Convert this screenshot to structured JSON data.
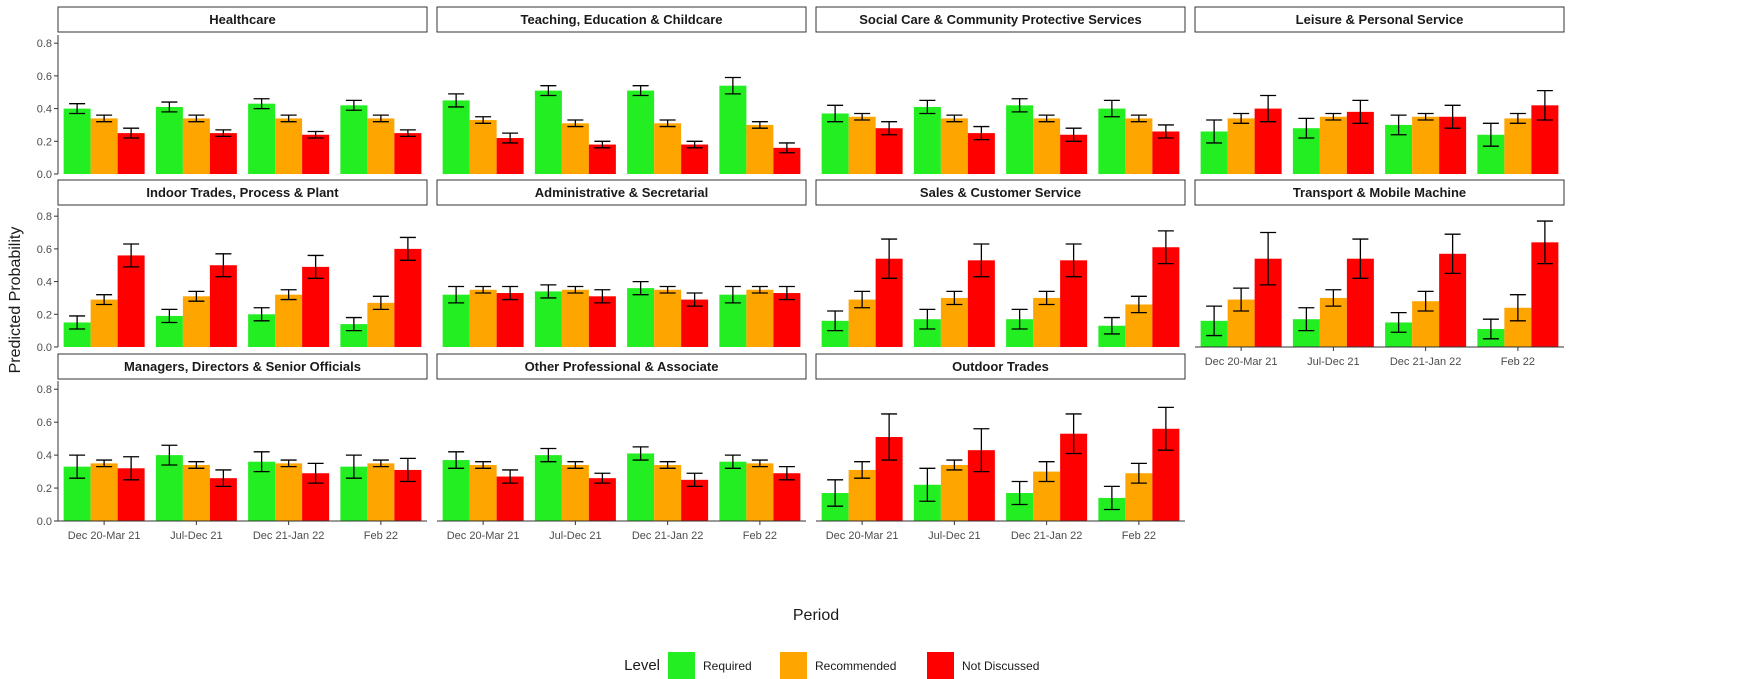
{
  "chart_data": {
    "type": "bar",
    "xlabel": "Period",
    "ylabel": "Predicted Probability",
    "ylim": [
      0,
      0.85
    ],
    "yticks": [
      "0.0",
      "0.2",
      "0.4",
      "0.6",
      "0.8"
    ],
    "periods": [
      "Dec 20-Mar 21",
      "Jul-Dec 21",
      "Dec 21-Jan 22",
      "Feb 22"
    ],
    "grid": false,
    "legend": {
      "title": "Level",
      "position": "bottom",
      "items": [
        {
          "name": "Required",
          "color": "#22ee22"
        },
        {
          "name": "Recommended",
          "color": "#ffa500"
        },
        {
          "name": "Not Discussed",
          "color": "#ff0000"
        }
      ]
    },
    "panels": [
      {
        "title": "Healthcare",
        "values": [
          [
            0.4,
            0.34,
            0.25
          ],
          [
            0.41,
            0.34,
            0.25
          ],
          [
            0.43,
            0.34,
            0.24
          ],
          [
            0.42,
            0.34,
            0.25
          ]
        ],
        "errors": [
          [
            0.03,
            0.02,
            0.03
          ],
          [
            0.03,
            0.02,
            0.02
          ],
          [
            0.03,
            0.02,
            0.02
          ],
          [
            0.03,
            0.02,
            0.02
          ]
        ]
      },
      {
        "title": "Teaching, Education & Childcare",
        "values": [
          [
            0.45,
            0.33,
            0.22
          ],
          [
            0.51,
            0.31,
            0.18
          ],
          [
            0.51,
            0.31,
            0.18
          ],
          [
            0.54,
            0.3,
            0.16
          ]
        ],
        "errors": [
          [
            0.04,
            0.02,
            0.03
          ],
          [
            0.03,
            0.02,
            0.02
          ],
          [
            0.03,
            0.02,
            0.02
          ],
          [
            0.05,
            0.02,
            0.03
          ]
        ]
      },
      {
        "title": "Social Care & Community Protective Services",
        "values": [
          [
            0.37,
            0.35,
            0.28
          ],
          [
            0.41,
            0.34,
            0.25
          ],
          [
            0.42,
            0.34,
            0.24
          ],
          [
            0.4,
            0.34,
            0.26
          ]
        ],
        "errors": [
          [
            0.05,
            0.02,
            0.04
          ],
          [
            0.04,
            0.02,
            0.04
          ],
          [
            0.04,
            0.02,
            0.04
          ],
          [
            0.05,
            0.02,
            0.04
          ]
        ]
      },
      {
        "title": "Leisure & Personal Service",
        "values": [
          [
            0.26,
            0.34,
            0.4
          ],
          [
            0.28,
            0.35,
            0.38
          ],
          [
            0.3,
            0.35,
            0.35
          ],
          [
            0.24,
            0.34,
            0.42
          ]
        ],
        "errors": [
          [
            0.07,
            0.03,
            0.08
          ],
          [
            0.06,
            0.02,
            0.07
          ],
          [
            0.06,
            0.02,
            0.07
          ],
          [
            0.07,
            0.03,
            0.09
          ]
        ]
      },
      {
        "title": "Indoor Trades, Process & Plant",
        "values": [
          [
            0.15,
            0.29,
            0.56
          ],
          [
            0.19,
            0.31,
            0.5
          ],
          [
            0.2,
            0.32,
            0.49
          ],
          [
            0.14,
            0.27,
            0.6
          ]
        ],
        "errors": [
          [
            0.04,
            0.03,
            0.07
          ],
          [
            0.04,
            0.03,
            0.07
          ],
          [
            0.04,
            0.03,
            0.07
          ],
          [
            0.04,
            0.04,
            0.07
          ]
        ]
      },
      {
        "title": "Administrative & Secretarial",
        "values": [
          [
            0.32,
            0.35,
            0.33
          ],
          [
            0.34,
            0.35,
            0.31
          ],
          [
            0.36,
            0.35,
            0.29
          ],
          [
            0.32,
            0.35,
            0.33
          ]
        ],
        "errors": [
          [
            0.05,
            0.02,
            0.04
          ],
          [
            0.04,
            0.02,
            0.04
          ],
          [
            0.04,
            0.02,
            0.04
          ],
          [
            0.05,
            0.02,
            0.04
          ]
        ]
      },
      {
        "title": "Sales & Customer Service",
        "values": [
          [
            0.16,
            0.29,
            0.54
          ],
          [
            0.17,
            0.3,
            0.53
          ],
          [
            0.17,
            0.3,
            0.53
          ],
          [
            0.13,
            0.26,
            0.61
          ]
        ],
        "errors": [
          [
            0.06,
            0.05,
            0.12
          ],
          [
            0.06,
            0.04,
            0.1
          ],
          [
            0.06,
            0.04,
            0.1
          ],
          [
            0.05,
            0.05,
            0.1
          ]
        ]
      },
      {
        "title": "Transport & Mobile Machine",
        "values": [
          [
            0.16,
            0.29,
            0.54
          ],
          [
            0.17,
            0.3,
            0.54
          ],
          [
            0.15,
            0.28,
            0.57
          ],
          [
            0.11,
            0.24,
            0.64
          ]
        ],
        "errors": [
          [
            0.09,
            0.07,
            0.16
          ],
          [
            0.07,
            0.05,
            0.12
          ],
          [
            0.06,
            0.06,
            0.12
          ],
          [
            0.06,
            0.08,
            0.13
          ]
        ]
      },
      {
        "title": "Managers, Directors & Senior Officials",
        "values": [
          [
            0.33,
            0.35,
            0.32
          ],
          [
            0.4,
            0.34,
            0.26
          ],
          [
            0.36,
            0.35,
            0.29
          ],
          [
            0.33,
            0.35,
            0.31
          ]
        ],
        "errors": [
          [
            0.07,
            0.02,
            0.07
          ],
          [
            0.06,
            0.02,
            0.05
          ],
          [
            0.06,
            0.02,
            0.06
          ],
          [
            0.07,
            0.02,
            0.07
          ]
        ]
      },
      {
        "title": "Other Professional & Associate",
        "values": [
          [
            0.37,
            0.34,
            0.27
          ],
          [
            0.4,
            0.34,
            0.26
          ],
          [
            0.41,
            0.34,
            0.25
          ],
          [
            0.36,
            0.35,
            0.29
          ]
        ],
        "errors": [
          [
            0.05,
            0.02,
            0.04
          ],
          [
            0.04,
            0.02,
            0.03
          ],
          [
            0.04,
            0.02,
            0.04
          ],
          [
            0.04,
            0.02,
            0.04
          ]
        ]
      },
      {
        "title": "Outdoor Trades",
        "values": [
          [
            0.17,
            0.31,
            0.51
          ],
          [
            0.22,
            0.34,
            0.43
          ],
          [
            0.17,
            0.3,
            0.53
          ],
          [
            0.14,
            0.29,
            0.56
          ]
        ],
        "errors": [
          [
            0.08,
            0.05,
            0.14
          ],
          [
            0.1,
            0.03,
            0.13
          ],
          [
            0.07,
            0.06,
            0.12
          ],
          [
            0.07,
            0.06,
            0.13
          ]
        ]
      }
    ]
  }
}
